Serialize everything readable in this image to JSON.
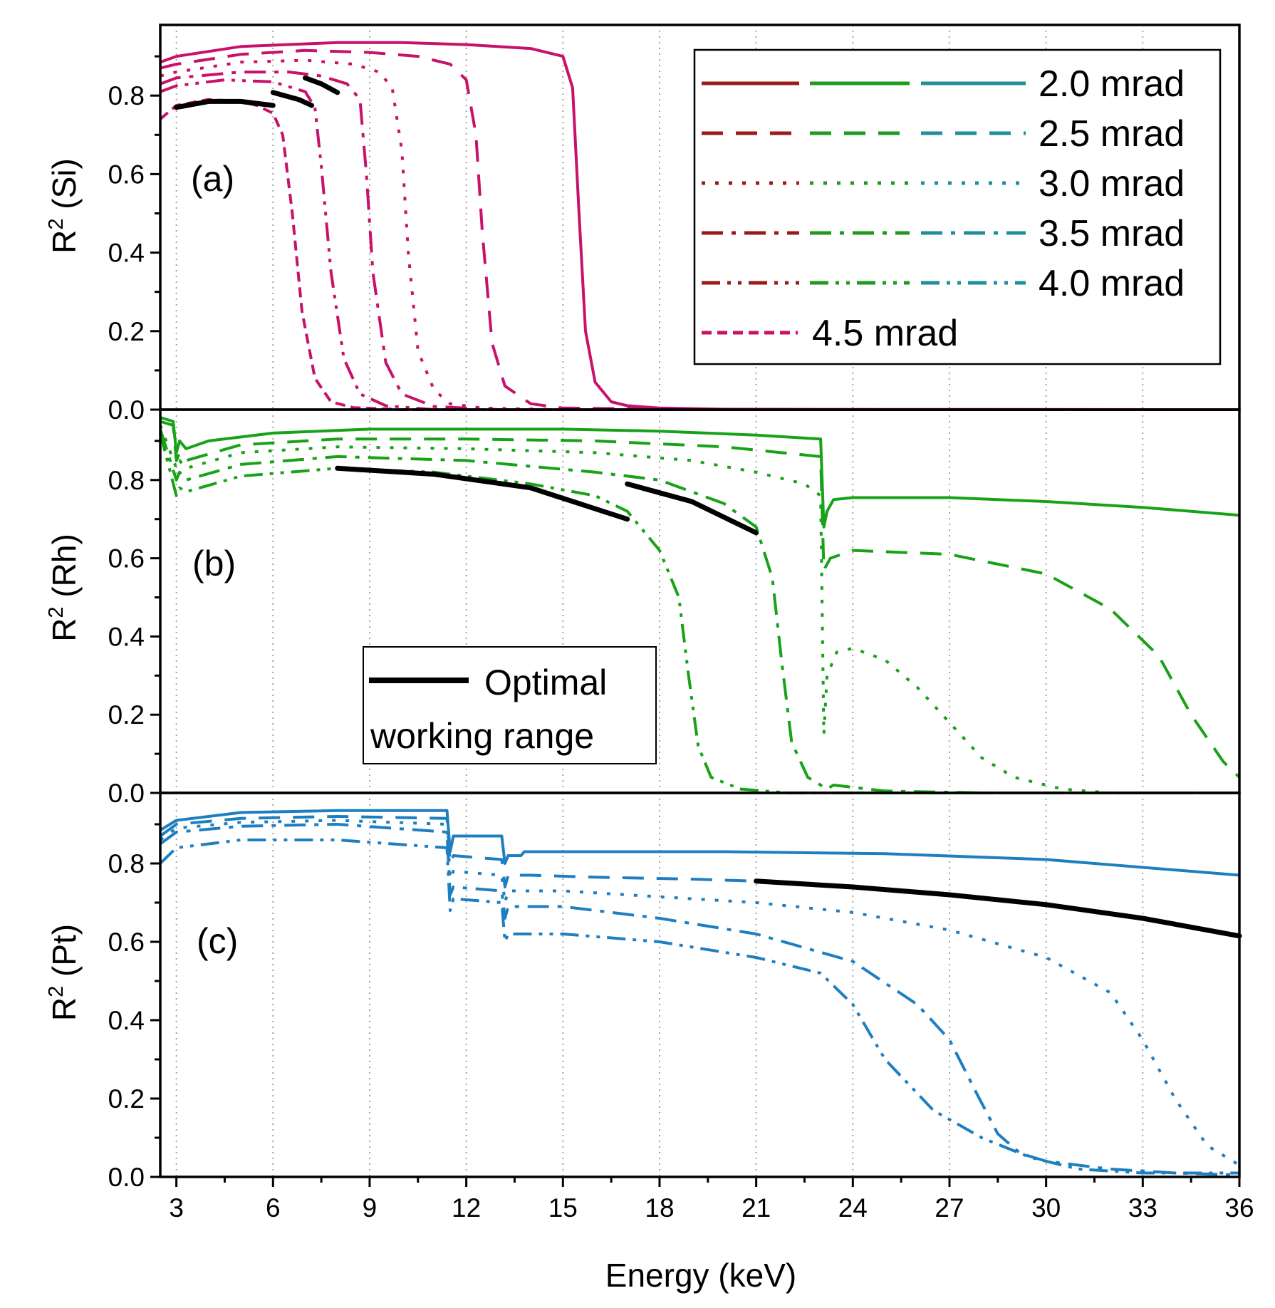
{
  "chart_data": {
    "type": "line",
    "xlabel": "Energy (keV)",
    "xlim": [
      2.5,
      36
    ],
    "xticks": [
      3,
      6,
      9,
      12,
      15,
      18,
      21,
      24,
      27,
      30,
      33,
      36
    ],
    "xtick_labels": [
      "3",
      "6",
      "9",
      "12",
      "15",
      "18",
      "21",
      "24",
      "27",
      "30",
      "33",
      "36"
    ],
    "ylim": [
      0,
      0.98
    ],
    "yticks": [
      0,
      0.2,
      0.4,
      0.6,
      0.8
    ],
    "ytick_labels": [
      "0.0",
      "0.2",
      "0.4",
      "0.6",
      "0.8"
    ],
    "grid": "vertical dotted lines at x ticks",
    "colors": {
      "si": "#c8116b",
      "rh": "#18a218",
      "pt": "#1e7fc0",
      "optimal": "#000000",
      "legend_si": "#9b1b1b",
      "legend_rh": "#1f9a1f",
      "legend_pt": "#1e8f9b"
    },
    "legend": {
      "position": "top-right of panel (a)",
      "entries": [
        {
          "label": "2.0 mrad",
          "dash": "solid"
        },
        {
          "label": "2.5 mrad",
          "dash": "dash"
        },
        {
          "label": "3.0 mrad",
          "dash": "dot"
        },
        {
          "label": "3.5 mrad",
          "dash": "dash-dot"
        },
        {
          "label": "4.0 mrad",
          "dash": "dash-dot-dot"
        },
        {
          "label": "4.5 mrad",
          "dash": "short-dash"
        }
      ]
    },
    "optimal_legend": {
      "label_line1": "Optimal",
      "label_line2": "working range",
      "position": "center-left of panel (b)"
    },
    "panels": [
      {
        "id": "a",
        "label": "(a)",
        "ylabel_main": "R",
        "ylabel_sup": "2",
        "ylabel_rest": " (Si)",
        "color": "si",
        "series": [
          {
            "name": "2.0 mrad",
            "dash": "solid",
            "x": [
              2.5,
              3,
              5,
              8,
              10,
              12,
              14,
              15,
              15.3,
              15.5,
              15.7,
              16,
              16.5,
              17,
              18,
              20,
              25,
              36
            ],
            "y": [
              0.885,
              0.9,
              0.925,
              0.935,
              0.935,
              0.93,
              0.92,
              0.9,
              0.82,
              0.5,
              0.2,
              0.07,
              0.02,
              0.01,
              0.004,
              0.001,
              0.0005,
              0.0
            ]
          },
          {
            "name": "2.5 mrad",
            "dash": "dash",
            "x": [
              2.5,
              3,
              5,
              7,
              9,
              10.5,
              11.5,
              12,
              12.3,
              12.5,
              12.8,
              13.2,
              14,
              15,
              20,
              36
            ],
            "y": [
              0.87,
              0.88,
              0.905,
              0.915,
              0.91,
              0.9,
              0.88,
              0.84,
              0.7,
              0.45,
              0.17,
              0.06,
              0.015,
              0.004,
              0.0,
              0.0
            ]
          },
          {
            "name": "3.0 mrad",
            "dash": "dot",
            "x": [
              2.5,
              3,
              5,
              7,
              8.5,
              9.3,
              9.7,
              10,
              10.2,
              10.5,
              11,
              11.5,
              12.5,
              15,
              36
            ],
            "y": [
              0.85,
              0.86,
              0.885,
              0.89,
              0.88,
              0.86,
              0.82,
              0.66,
              0.4,
              0.15,
              0.05,
              0.015,
              0.004,
              0.0,
              0.0
            ]
          },
          {
            "name": "3.5 mrad",
            "dash": "dash-dot",
            "x": [
              2.5,
              3,
              5,
              6.5,
              7.5,
              8.3,
              8.7,
              8.9,
              9.1,
              9.5,
              10,
              11,
              13,
              36
            ],
            "y": [
              0.83,
              0.845,
              0.86,
              0.86,
              0.85,
              0.83,
              0.79,
              0.6,
              0.35,
              0.12,
              0.04,
              0.008,
              0.0,
              0.0
            ]
          },
          {
            "name": "4.0 mrad",
            "dash": "dash-dot-dot",
            "x": [
              2.5,
              3,
              4.5,
              6,
              7,
              7.3,
              7.5,
              7.8,
              8.2,
              8.7,
              9.5,
              11,
              36
            ],
            "y": [
              0.81,
              0.825,
              0.84,
              0.835,
              0.81,
              0.77,
              0.62,
              0.35,
              0.13,
              0.04,
              0.01,
              0.0,
              0.0
            ]
          },
          {
            "name": "4.5 mrad",
            "dash": "short-dash",
            "x": [
              2.5,
              3,
              4,
              5,
              5.5,
              6,
              6.3,
              6.6,
              6.9,
              7.3,
              7.8,
              8.5,
              10,
              36
            ],
            "y": [
              0.74,
              0.775,
              0.79,
              0.785,
              0.775,
              0.755,
              0.7,
              0.5,
              0.25,
              0.08,
              0.02,
              0.005,
              0.0,
              0.0
            ]
          }
        ],
        "optimal_segments": [
          {
            "x": [
              3,
              4,
              5,
              6
            ],
            "y": [
              0.77,
              0.785,
              0.785,
              0.775
            ]
          },
          {
            "x": [
              6,
              6.8,
              7.2
            ],
            "y": [
              0.808,
              0.79,
              0.775
            ]
          },
          {
            "x": [
              7,
              7.5,
              8
            ],
            "y": [
              0.845,
              0.83,
              0.808
            ]
          }
        ]
      },
      {
        "id": "b",
        "label": "(b)",
        "ylabel_main": "R",
        "ylabel_sup": "2",
        "ylabel_rest": " (Rh)",
        "color": "rh",
        "series": [
          {
            "name": "2.0 mrad",
            "dash": "solid",
            "x": [
              2.5,
              2.9,
              3.0,
              3.1,
              3.3,
              4,
              6,
              9,
              12,
              15,
              18,
              21,
              23.0,
              23.1,
              23.2,
              23.4,
              24,
              27,
              30,
              33,
              36
            ],
            "y": [
              0.96,
              0.95,
              0.87,
              0.9,
              0.88,
              0.9,
              0.92,
              0.93,
              0.93,
              0.93,
              0.925,
              0.915,
              0.905,
              0.68,
              0.72,
              0.75,
              0.755,
              0.755,
              0.745,
              0.73,
              0.71
            ]
          },
          {
            "name": "2.5 mrad",
            "dash": "dash",
            "x": [
              2.5,
              2.9,
              3.0,
              3.1,
              3.3,
              5,
              8,
              12,
              16,
              20,
              23.0,
              23.1,
              23.3,
              24,
              27,
              30,
              32,
              33.5,
              34.5,
              35.5,
              36
            ],
            "y": [
              0.95,
              0.94,
              0.85,
              0.87,
              0.85,
              0.89,
              0.905,
              0.905,
              0.9,
              0.885,
              0.86,
              0.57,
              0.6,
              0.62,
              0.61,
              0.56,
              0.47,
              0.35,
              0.2,
              0.08,
              0.04
            ]
          },
          {
            "name": "3.0 mrad",
            "dash": "dot",
            "x": [
              2.5,
              3.0,
              3.1,
              3.3,
              5,
              8,
              12,
              16,
              19,
              21,
              22.5,
              23.0,
              23.1,
              23.2,
              23.5,
              24,
              25,
              26,
              27,
              28,
              29,
              30.5,
              32,
              36
            ],
            "y": [
              0.94,
              0.83,
              0.85,
              0.83,
              0.87,
              0.885,
              0.88,
              0.87,
              0.85,
              0.82,
              0.79,
              0.76,
              0.15,
              0.3,
              0.36,
              0.37,
              0.34,
              0.27,
              0.18,
              0.09,
              0.04,
              0.01,
              0.0,
              0.0
            ]
          },
          {
            "name": "3.5 mrad",
            "dash": "dash-dot",
            "x": [
              2.5,
              3.0,
              3.1,
              3.3,
              5,
              8,
              12,
              16,
              18,
              20,
              21,
              21.5,
              21.8,
              22.1,
              22.6,
              23.2,
              23.4,
              25,
              28,
              36
            ],
            "y": [
              0.93,
              0.8,
              0.82,
              0.8,
              0.84,
              0.86,
              0.85,
              0.82,
              0.8,
              0.74,
              0.68,
              0.55,
              0.33,
              0.13,
              0.04,
              0.01,
              0.02,
              0.005,
              0.0,
              0.0
            ]
          },
          {
            "name": "4.0 mrad",
            "dash": "dash-dot-dot",
            "x": [
              2.5,
              3.0,
              3.1,
              3.3,
              5,
              8,
              11,
              14,
              16,
              17,
              18,
              18.6,
              18.9,
              19.2,
              19.6,
              20.5,
              22,
              24,
              36
            ],
            "y": [
              0.92,
              0.76,
              0.78,
              0.77,
              0.81,
              0.83,
              0.82,
              0.79,
              0.76,
              0.72,
              0.62,
              0.5,
              0.3,
              0.12,
              0.04,
              0.01,
              0.0,
              0.0,
              0.0
            ]
          }
        ],
        "optimal_segments": [
          {
            "x": [
              8,
              11,
              14,
              17
            ],
            "y": [
              0.83,
              0.815,
              0.78,
              0.7
            ]
          },
          {
            "x": [
              17,
              19,
              21
            ],
            "y": [
              0.79,
              0.745,
              0.665
            ]
          }
        ]
      },
      {
        "id": "c",
        "label": "(c)",
        "ylabel_main": "R",
        "ylabel_sup": "2",
        "ylabel_rest": " (Pt)",
        "color": "pt",
        "series": [
          {
            "name": "2.0 mrad",
            "dash": "solid",
            "x": [
              2.5,
              3,
              5,
              8,
              11.4,
              11.5,
              11.6,
              13.1,
              13.2,
              13.3,
              13.7,
              13.8,
              15,
              20,
              25,
              30,
              36
            ],
            "y": [
              0.885,
              0.91,
              0.93,
              0.935,
              0.935,
              0.83,
              0.87,
              0.87,
              0.8,
              0.82,
              0.82,
              0.83,
              0.83,
              0.83,
              0.825,
              0.81,
              0.77
            ]
          },
          {
            "name": "2.5 mrad",
            "dash": "dash",
            "x": [
              2.5,
              3,
              5,
              8,
              11.4,
              11.5,
              11.6,
              13.1,
              13.2,
              13.3,
              14,
              16,
              19,
              21
            ],
            "y": [
              0.87,
              0.9,
              0.915,
              0.92,
              0.915,
              0.8,
              0.82,
              0.81,
              0.74,
              0.77,
              0.77,
              0.765,
              0.76,
              0.755
            ]
          },
          {
            "name": "3.0 mrad",
            "dash": "dot",
            "x": [
              2.5,
              3,
              5,
              8,
              11.4,
              11.5,
              11.6,
              13.1,
              13.2,
              13.3,
              15,
              18,
              21,
              24,
              27,
              30,
              32,
              33,
              34,
              35,
              36
            ],
            "y": [
              0.86,
              0.89,
              0.905,
              0.91,
              0.9,
              0.76,
              0.78,
              0.77,
              0.7,
              0.73,
              0.73,
              0.715,
              0.7,
              0.675,
              0.63,
              0.56,
              0.47,
              0.35,
              0.2,
              0.08,
              0.03
            ]
          },
          {
            "name": "3.5 mrad",
            "dash": "dash-dot",
            "x": [
              2.5,
              3,
              5,
              8,
              11.4,
              11.5,
              11.6,
              13.1,
              13.2,
              13.3,
              15,
              18,
              21,
              24,
              26,
              27,
              27.8,
              28.5,
              29.2,
              30,
              32,
              34,
              36
            ],
            "y": [
              0.85,
              0.88,
              0.895,
              0.9,
              0.88,
              0.72,
              0.74,
              0.73,
              0.66,
              0.69,
              0.69,
              0.66,
              0.62,
              0.55,
              0.44,
              0.35,
              0.22,
              0.11,
              0.06,
              0.04,
              0.02,
              0.01,
              0.005
            ]
          },
          {
            "name": "4.0 mrad",
            "dash": "dash-dot-dot",
            "x": [
              2.5,
              3,
              5,
              8,
              11.4,
              11.5,
              11.6,
              13.1,
              13.2,
              13.3,
              15,
              18,
              21,
              23,
              24,
              25,
              26.5,
              28,
              29.5,
              31,
              33,
              36
            ],
            "y": [
              0.8,
              0.84,
              0.86,
              0.86,
              0.84,
              0.68,
              0.71,
              0.7,
              0.6,
              0.62,
              0.62,
              0.6,
              0.56,
              0.52,
              0.44,
              0.3,
              0.17,
              0.1,
              0.05,
              0.02,
              0.01,
              0.01
            ]
          }
        ],
        "optimal_segments": [
          {
            "x": [
              21,
              24,
              27,
              30,
              33,
              36
            ],
            "y": [
              0.755,
              0.74,
              0.72,
              0.695,
              0.66,
              0.615
            ]
          }
        ]
      }
    ]
  }
}
